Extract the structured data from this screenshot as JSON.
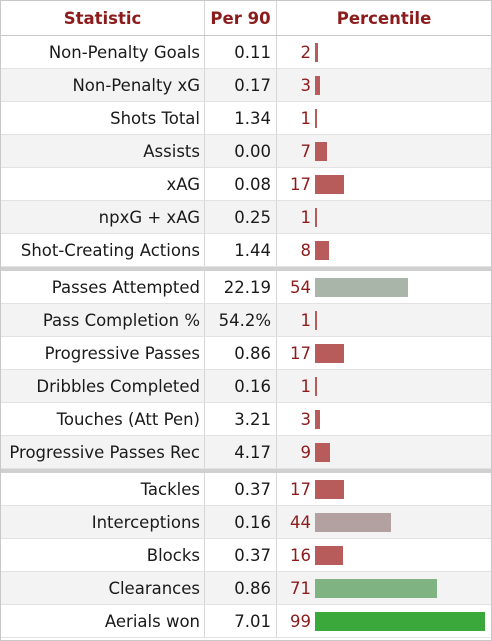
{
  "header": {
    "statistic": "Statistic",
    "per90": "Per 90",
    "percentile": "Percentile"
  },
  "groups": [
    {
      "rows": [
        {
          "stat": "Non-Penalty Goals",
          "per90": "0.11",
          "percentile": 2,
          "color": "#b85b5b"
        },
        {
          "stat": "Non-Penalty xG",
          "per90": "0.17",
          "percentile": 3,
          "color": "#b85b5b"
        },
        {
          "stat": "Shots Total",
          "per90": "1.34",
          "percentile": 1,
          "color": "#b85b5b"
        },
        {
          "stat": "Assists",
          "per90": "0.00",
          "percentile": 7,
          "color": "#b85b5b"
        },
        {
          "stat": "xAG",
          "per90": "0.08",
          "percentile": 17,
          "color": "#b85b5b"
        },
        {
          "stat": "npxG + xAG",
          "per90": "0.25",
          "percentile": 1,
          "color": "#b85b5b"
        },
        {
          "stat": "Shot-Creating Actions",
          "per90": "1.44",
          "percentile": 8,
          "color": "#b85b5b"
        }
      ]
    },
    {
      "rows": [
        {
          "stat": "Passes Attempted",
          "per90": "22.19",
          "percentile": 54,
          "color": "#a9b5a9"
        },
        {
          "stat": "Pass Completion %",
          "per90": "54.2%",
          "percentile": 1,
          "color": "#b85b5b"
        },
        {
          "stat": "Progressive Passes",
          "per90": "0.86",
          "percentile": 17,
          "color": "#b85b5b"
        },
        {
          "stat": "Dribbles Completed",
          "per90": "0.16",
          "percentile": 1,
          "color": "#b85b5b"
        },
        {
          "stat": "Touches (Att Pen)",
          "per90": "3.21",
          "percentile": 3,
          "color": "#b85b5b"
        },
        {
          "stat": "Progressive Passes Rec",
          "per90": "4.17",
          "percentile": 9,
          "color": "#b85b5b"
        }
      ]
    },
    {
      "rows": [
        {
          "stat": "Tackles",
          "per90": "0.37",
          "percentile": 17,
          "color": "#b85b5b"
        },
        {
          "stat": "Interceptions",
          "per90": "0.16",
          "percentile": 44,
          "color": "#b3a1a1"
        },
        {
          "stat": "Blocks",
          "per90": "0.37",
          "percentile": 16,
          "color": "#b85b5b"
        },
        {
          "stat": "Clearances",
          "per90": "0.86",
          "percentile": 71,
          "color": "#7fb382"
        },
        {
          "stat": "Aerials won",
          "per90": "7.01",
          "percentile": 99,
          "color": "#3aa83a"
        }
      ]
    }
  ]
}
